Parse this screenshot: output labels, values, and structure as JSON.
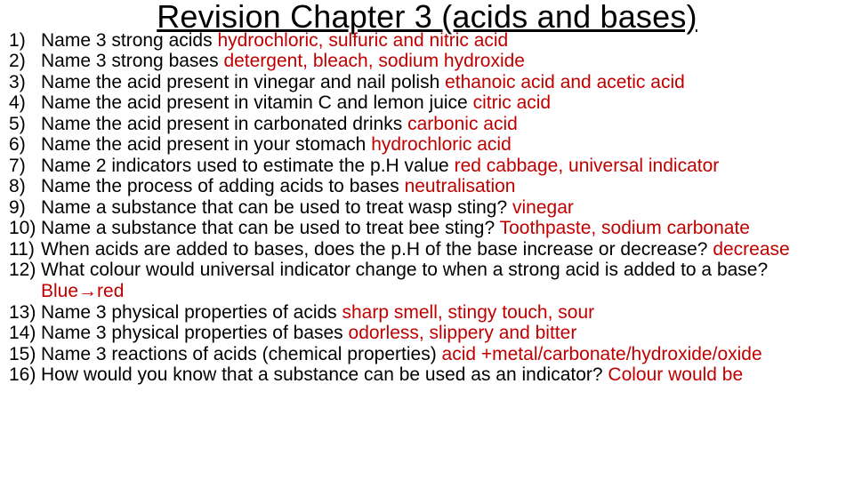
{
  "title": "Revision Chapter 3 (acids and bases)",
  "colors": {
    "question": "#000000",
    "answer": "#c00000",
    "background": "#ffffff"
  },
  "typography": {
    "title_fontsize": 36,
    "body_fontsize": 21,
    "font_family": "Segoe UI"
  },
  "items": [
    {
      "q": "Name 3 strong acids ",
      "a": "hydrochloric, sulfuric and nitric acid"
    },
    {
      "q": "Name 3 strong bases ",
      "a": "detergent, bleach, sodium hydroxide"
    },
    {
      "q": "Name the acid present in vinegar and nail polish ",
      "a": "ethanoic acid and acetic acid"
    },
    {
      "q": "Name the acid present in vitamin C and lemon juice ",
      "a": "citric acid"
    },
    {
      "q": "Name the acid present in carbonated drinks ",
      "a": "carbonic acid"
    },
    {
      "q": "Name the acid present in your stomach ",
      "a": "hydrochloric acid"
    },
    {
      "q": "Name 2 indicators used to estimate the p.H value ",
      "a": "red cabbage, universal indicator"
    },
    {
      "q": "Name the process of adding acids to bases ",
      "a": "neutralisation"
    },
    {
      "q": "Name a substance that can be used to treat wasp sting? ",
      "a": "vinegar"
    },
    {
      "q": "Name a substance that can be used to treat bee sting? ",
      "a": "Toothpaste, sodium carbonate"
    },
    {
      "q": "When acids are added to bases, does the p.H of the base increase or decrease? ",
      "a": "decrease"
    },
    {
      "q": "What colour would universal indicator change to when a strong acid is added to a base? ",
      "a": "Blue→red"
    },
    {
      "q": "Name 3 physical properties of acids ",
      "a": "sharp smell, stingy touch, sour"
    },
    {
      "q": "Name 3 physical properties of bases ",
      "a": "odorless, slippery and bitter"
    },
    {
      "q": "Name 3 reactions of acids (chemical properties) ",
      "a": "acid +metal/carbonate/hydroxide/oxide"
    },
    {
      "q": "How would you know that a substance can be used as an indicator? ",
      "a": "Colour would be"
    }
  ]
}
